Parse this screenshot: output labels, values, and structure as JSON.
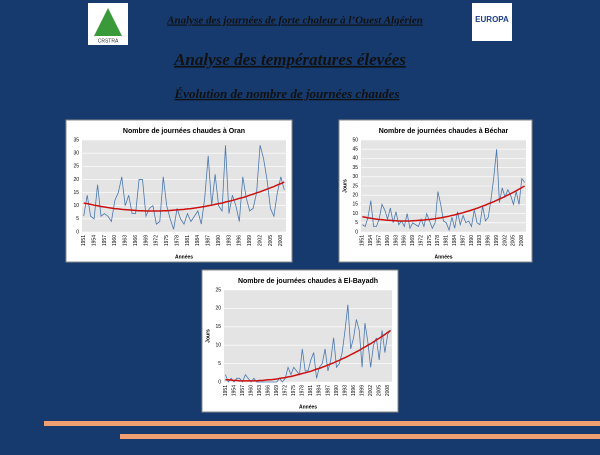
{
  "header": {
    "subtitle": "Analyse des journées de forte chaleur à l’Ouest Algérien",
    "title": "Analyse des températures élevées",
    "heading": "Évolution de nombre de journées chaudes",
    "logo_left": "CRSTRA",
    "logo_right": "EUROPA"
  },
  "chart_data": [
    {
      "type": "line",
      "title": "Nombre de journées chaudes à Oran",
      "xlabel": "Années",
      "categories": [
        "1951",
        null,
        null,
        "1954",
        null,
        null,
        "1957",
        null,
        null,
        "1960",
        null,
        null,
        "1963",
        null,
        null,
        "1966",
        null,
        null,
        "1969",
        null,
        null,
        "1972",
        null,
        null,
        "1975",
        null,
        null,
        "1978",
        null,
        null,
        "1981",
        null,
        null,
        "1984",
        null,
        null,
        "1987",
        null,
        null,
        "1990",
        null,
        null,
        "1993",
        null,
        null,
        "1996",
        null,
        null,
        "1999",
        null,
        null,
        "2002",
        null,
        null,
        "2005",
        null,
        null,
        "2008",
        null
      ],
      "series": [
        {
          "color": "#4a78b0",
          "values": [
            6,
            14,
            6,
            5,
            18,
            6,
            7,
            6,
            4,
            12,
            15,
            21,
            10,
            14,
            7,
            7,
            20,
            20,
            6,
            9,
            10,
            3,
            4,
            21,
            10,
            5,
            1,
            9,
            5,
            3,
            7,
            4,
            6,
            8,
            3,
            13,
            29,
            10,
            22,
            10,
            8,
            33,
            7,
            14,
            10,
            4,
            21,
            13,
            8,
            9,
            15,
            33,
            28,
            20,
            9,
            6,
            15,
            21,
            16
          ]
        },
        {
          "color": "#cc1111",
          "values": [
            11.0,
            10.8,
            10.5,
            10.2,
            10.0,
            9.7,
            9.5,
            9.3,
            9.1,
            8.9,
            8.8,
            8.6,
            8.5,
            8.4,
            8.3,
            8.2,
            8.1,
            8.1,
            8.0,
            8.0,
            8.0,
            8.0,
            8.0,
            8.1,
            8.1,
            8.2,
            8.3,
            8.4,
            8.5,
            8.6,
            8.8,
            8.9,
            9.1,
            9.3,
            9.5,
            9.7,
            10.0,
            10.2,
            10.5,
            10.8,
            11.0,
            11.4,
            11.7,
            12.0,
            12.4,
            12.8,
            13.1,
            13.5,
            14.0,
            14.4,
            14.9,
            15.3,
            15.8,
            16.3,
            16.8,
            17.3,
            17.9,
            18.4,
            19.0
          ]
        }
      ],
      "ylim": [
        0,
        35
      ],
      "yticks": [
        0,
        5,
        10,
        15,
        20,
        25,
        30,
        35
      ],
      "grid": true
    },
    {
      "type": "line",
      "title": "Nombre de journées chaudes à Béchar",
      "xlabel": "Années",
      "ylabel": "Jours",
      "categories": [
        "1951",
        null,
        null,
        "1954",
        null,
        null,
        "1957",
        null,
        null,
        "1960",
        null,
        null,
        "1963",
        null,
        null,
        "1966",
        null,
        null,
        "1969",
        null,
        null,
        "1972",
        null,
        null,
        "1975",
        null,
        null,
        "1978",
        null,
        null,
        "1981",
        null,
        null,
        "1984",
        null,
        null,
        "1987",
        null,
        null,
        "1990",
        null,
        null,
        "1993",
        null,
        null,
        "1996",
        null,
        null,
        "1999",
        null,
        null,
        "2002",
        null,
        null,
        "2005",
        null,
        null,
        "2008",
        null
      ],
      "series": [
        {
          "color": "#4a78b0",
          "values": [
            4,
            3,
            8,
            17,
            3,
            3,
            7,
            15,
            12,
            7,
            13,
            5,
            11,
            4,
            6,
            3,
            10,
            2,
            5,
            4,
            3,
            7,
            3,
            10,
            6,
            2,
            5,
            22,
            15,
            6,
            5,
            1,
            8,
            2,
            11,
            4,
            9,
            5,
            6,
            3,
            12,
            5,
            4,
            14,
            6,
            8,
            18,
            30,
            45,
            16,
            24,
            19,
            23,
            20,
            15,
            22,
            15,
            29,
            27
          ]
        },
        {
          "color": "#cc1111",
          "values": [
            8.3,
            8.0,
            7.7,
            7.5,
            7.2,
            7.0,
            6.8,
            6.7,
            6.5,
            6.4,
            6.3,
            6.2,
            6.1,
            6.0,
            6.0,
            6.0,
            6.0,
            6.0,
            6.1,
            6.2,
            6.3,
            6.4,
            6.5,
            6.7,
            6.8,
            7.0,
            7.2,
            7.5,
            7.7,
            8.0,
            8.3,
            8.6,
            9.0,
            9.3,
            9.7,
            10.1,
            10.5,
            11.0,
            11.4,
            11.9,
            12.4,
            12.9,
            13.5,
            14.1,
            14.6,
            15.3,
            15.9,
            16.5,
            17.2,
            17.9,
            18.6,
            19.3,
            20.1,
            20.8,
            21.6,
            22.4,
            23.3,
            24.1,
            25.0
          ]
        }
      ],
      "ylim": [
        0,
        50
      ],
      "yticks": [
        0,
        5,
        10,
        15,
        20,
        25,
        30,
        35,
        40,
        45,
        50
      ],
      "grid": true
    },
    {
      "type": "line",
      "title": "Nombre de journées chaudes à El-Bayadh",
      "xlabel": "Années",
      "ylabel": "Jours",
      "categories": [
        "1951",
        null,
        null,
        "1954",
        null,
        null,
        "1957",
        null,
        null,
        "1960",
        null,
        null,
        "1963",
        null,
        null,
        "1966",
        null,
        null,
        "1969",
        null,
        null,
        "1972",
        null,
        null,
        "1975",
        null,
        null,
        "1978",
        null,
        null,
        "1981",
        null,
        null,
        "1984",
        null,
        null,
        "1987",
        null,
        null,
        "1990",
        null,
        null,
        "1993",
        null,
        null,
        "1996",
        null,
        null,
        "1999",
        null,
        null,
        "2002",
        null,
        null,
        "2005",
        null,
        null,
        "2008",
        null
      ],
      "series": [
        {
          "color": "#4a78b0",
          "values": [
            2,
            0,
            1,
            0,
            1,
            1,
            0,
            2,
            1,
            0,
            1,
            0,
            0,
            0,
            0,
            0,
            0,
            0,
            0,
            1,
            0,
            1,
            4,
            2,
            4,
            3,
            2,
            9,
            3,
            3,
            6,
            8,
            1,
            4,
            5,
            9,
            3,
            6,
            12,
            4,
            5,
            8,
            14,
            21,
            9,
            12,
            17,
            14,
            4,
            16,
            11,
            4,
            10,
            12,
            6,
            14,
            8,
            13,
            14
          ]
        },
        {
          "color": "#cc1111",
          "values": [
            0.6,
            0.6,
            0.5,
            0.4,
            0.4,
            0.3,
            0.3,
            0.3,
            0.3,
            0.3,
            0.3,
            0.3,
            0.4,
            0.4,
            0.5,
            0.6,
            0.6,
            0.7,
            0.8,
            1.0,
            1.1,
            1.2,
            1.4,
            1.5,
            1.7,
            1.9,
            2.1,
            2.3,
            2.5,
            2.7,
            2.9,
            3.2,
            3.5,
            3.7,
            4.0,
            4.3,
            4.6,
            4.9,
            5.2,
            5.6,
            5.9,
            6.3,
            6.6,
            7.0,
            7.4,
            7.8,
            8.2,
            8.6,
            9.1,
            9.5,
            10.0,
            10.4,
            10.9,
            11.4,
            11.9,
            12.4,
            12.9,
            13.5,
            14.0
          ]
        }
      ],
      "ylim": [
        0,
        25
      ],
      "yticks": [
        0,
        5,
        10,
        15,
        20,
        25
      ],
      "grid": true
    }
  ]
}
